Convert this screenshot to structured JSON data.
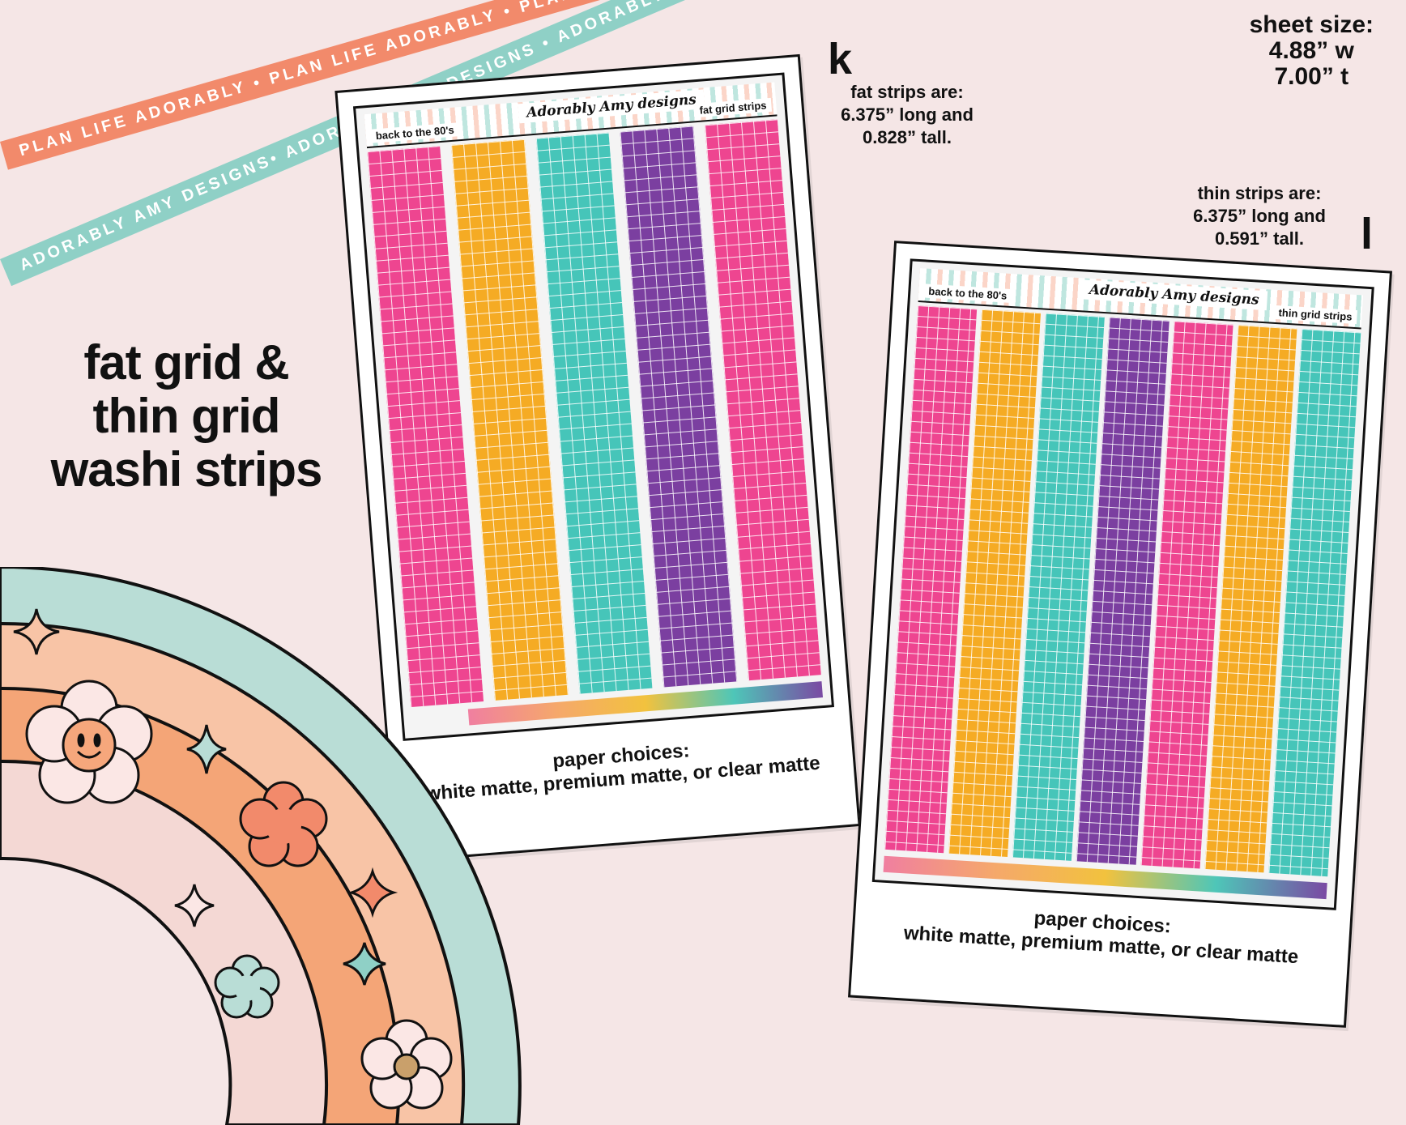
{
  "ribbons": {
    "coral_text": "PLAN LIFE ADORABLY • PLAN LIFE ADORABLY • PLAN LIFE ADORABLY",
    "mint_text": "ADORABLY AMY DESIGNS• ADORABLY AMY DESIGNS • ADORABLY AMY DESIGNS"
  },
  "headline": {
    "line1": "fat grid &",
    "line2": "thin grid",
    "line3": "washi strips"
  },
  "sheet_size": {
    "line1": "sheet size:",
    "line2": "4.88” w",
    "line3": "7.00” t"
  },
  "fat_info": {
    "marker": "k",
    "line1": "fat strips are:",
    "line2": "6.375” long and",
    "line3": "0.828” tall."
  },
  "thin_info": {
    "marker": "l",
    "line1": "thin strips are:",
    "line2": "6.375” long and",
    "line3": "0.591” tall."
  },
  "fat_sheet": {
    "left_label": "back to the 80's",
    "logo": "Adorably Amy designs",
    "right_label": "fat grid strips",
    "strip_colors": [
      "#ee4590",
      "#f5ab24",
      "#46c5b9",
      "#7b3fa0",
      "#ee4590"
    ],
    "caption_line1": "paper choices:",
    "caption_line2": "white matte, premium matte, or clear matte"
  },
  "thin_sheet": {
    "left_label": "back to the 80's",
    "logo": "Adorably Amy designs",
    "right_label": "thin grid strips",
    "strip_colors": [
      "#ee4590",
      "#f5ab24",
      "#46c5b9",
      "#7b3fa0",
      "#ee4590",
      "#f5ab24",
      "#46c5b9"
    ],
    "caption_line1": "paper choices:",
    "caption_line2": "white matte, premium matte, or clear matte"
  },
  "colors": {
    "background": "#f5e6e6",
    "coral": "#f28a6b",
    "mint": "#8fd0c6",
    "rainbow_outer": "#b9ddd6",
    "rainbow_peach": "#f8c4a6",
    "rainbow_orange": "#f4a577",
    "rainbow_inner": "#f4d8d4"
  }
}
